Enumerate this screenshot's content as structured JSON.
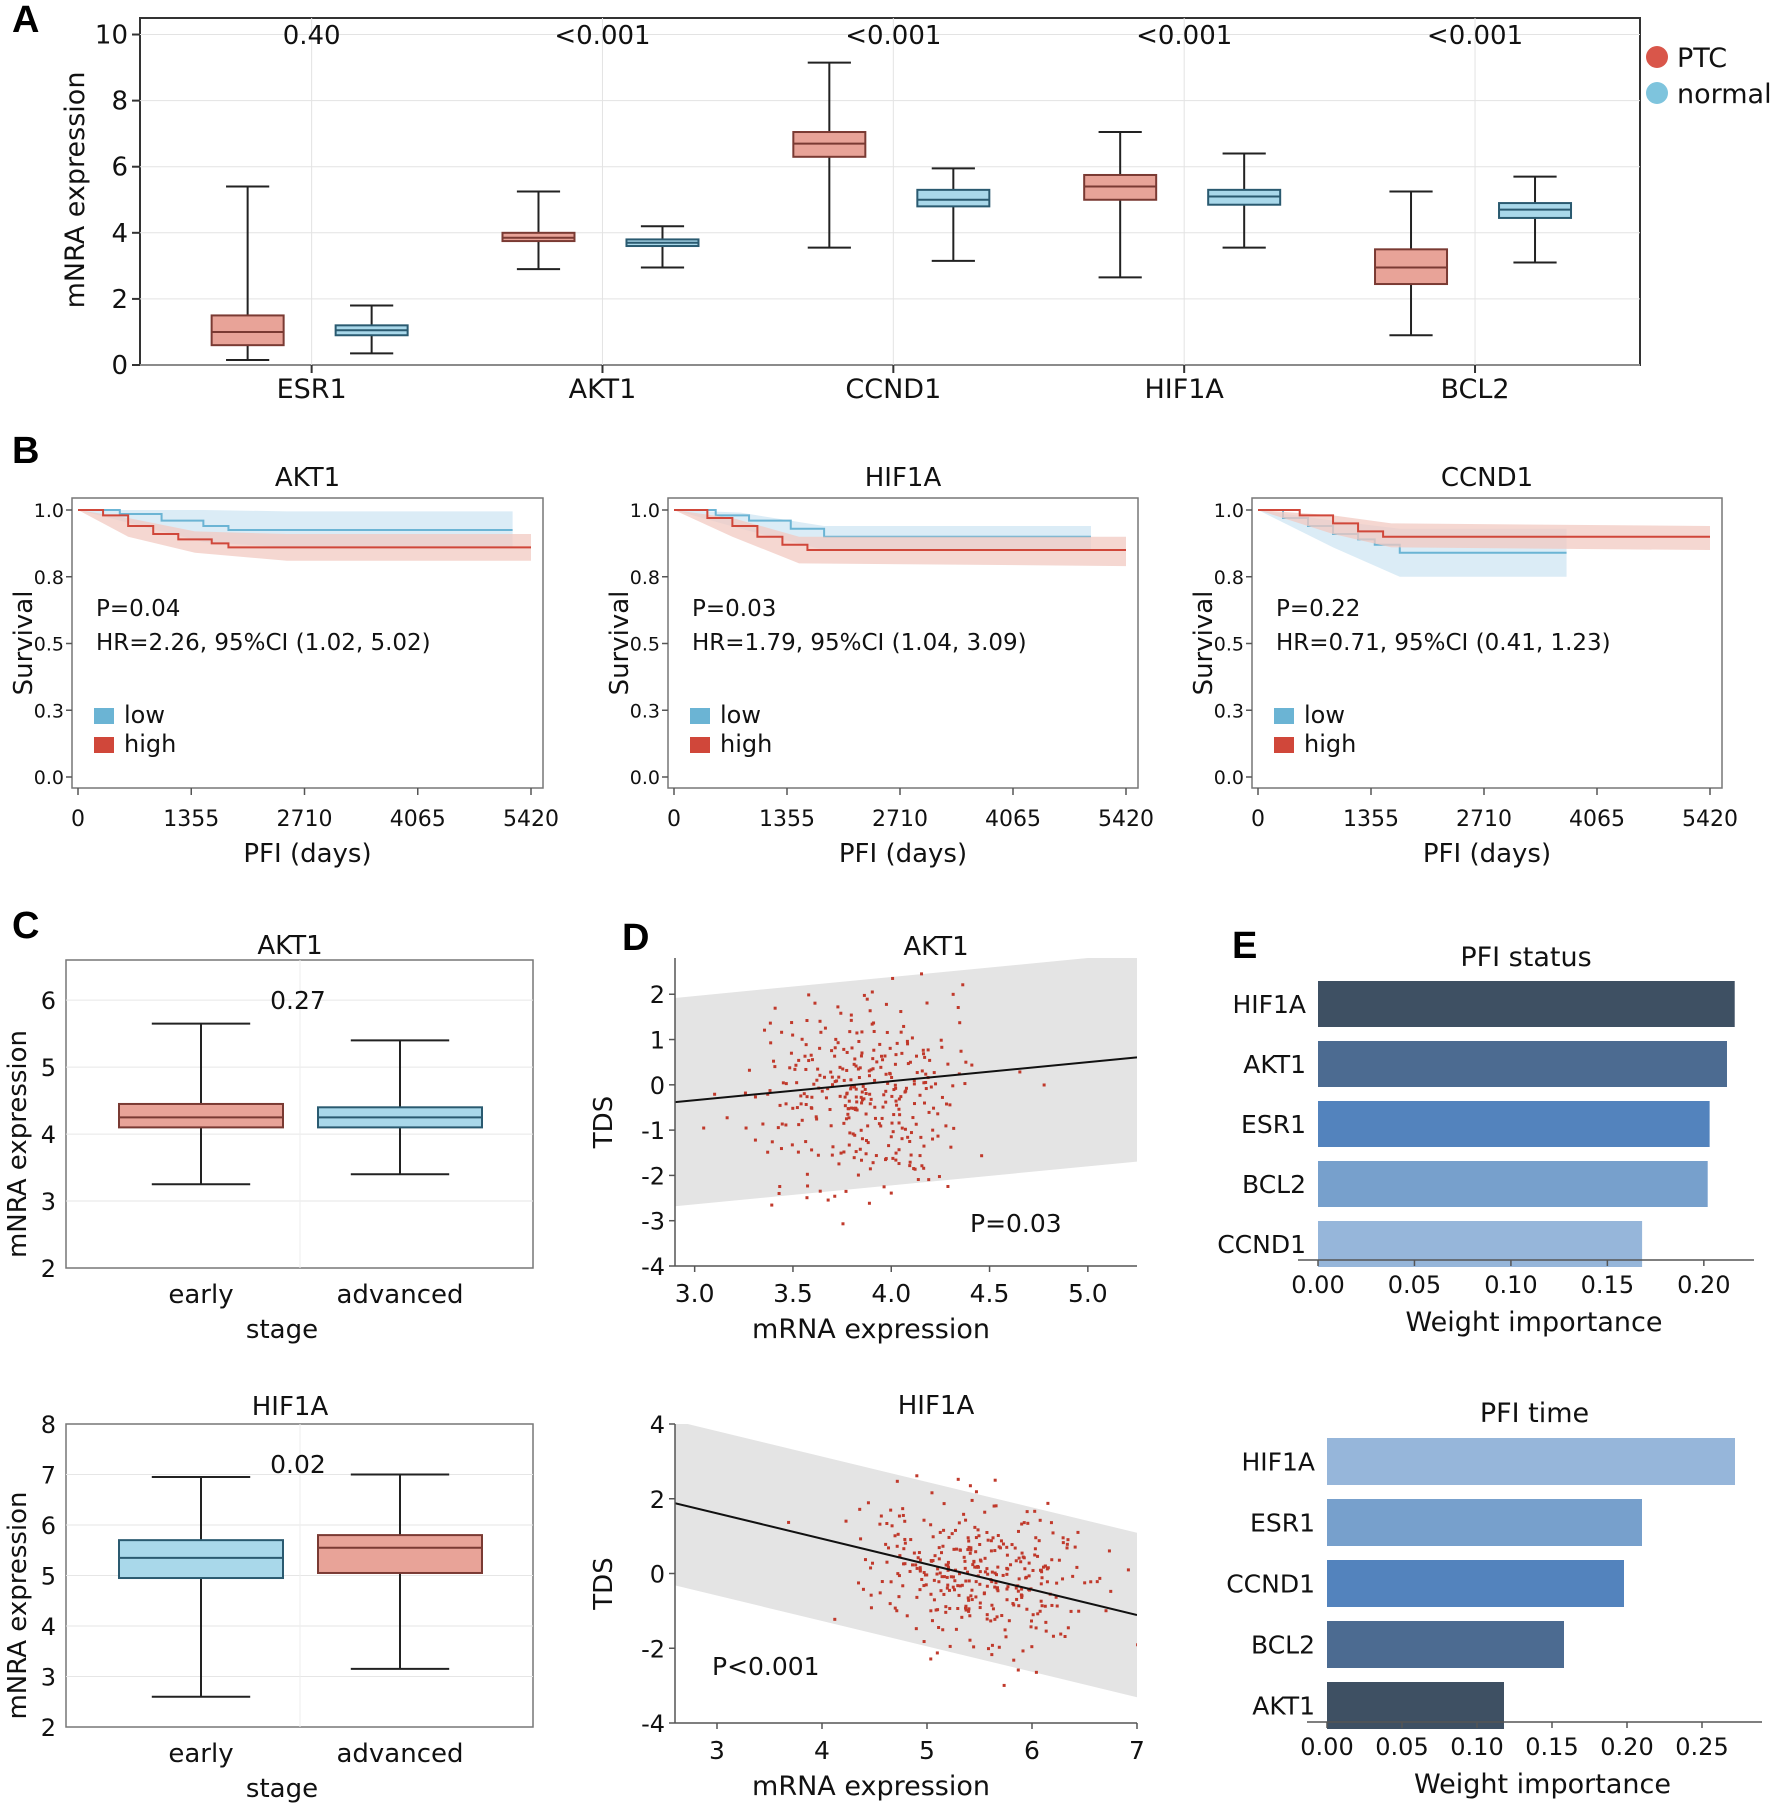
{
  "colors": {
    "ptc": "#e8a398",
    "ptc_edge": "#7a3a33",
    "normal": "#a9d8ea",
    "normal_edge": "#2a5a70",
    "low": "#6bb4d4",
    "high": "#d0473a",
    "band_low": "#cfe6f3",
    "band_high": "#f1c9c2",
    "scatter": "#c0392b",
    "bar_dark": "#3e5063",
    "bar_mid": "#4c6b91",
    "bar_blue": "#5383bd",
    "bar_light": "#77a0cc",
    "bar_pale": "#96b6da"
  },
  "panels": {
    "a": "A",
    "b": "B",
    "c": "C",
    "d": "D",
    "e": "E"
  },
  "chart_data": [
    {
      "id": "A",
      "type": "boxplot",
      "title": "",
      "ylabel": "mNRA expression",
      "xlabel": "",
      "ylim": [
        0,
        10.5
      ],
      "yticks": [
        0,
        2,
        4,
        6,
        8,
        10
      ],
      "categories": [
        "ESR1",
        "AKT1",
        "CCND1",
        "HIF1A",
        "BCL2"
      ],
      "pvalues": [
        "0.40",
        "<0.001",
        "<0.001",
        "<0.001",
        "<0.001"
      ],
      "legend": [
        "PTC",
        "normal"
      ],
      "series": [
        {
          "name": "PTC",
          "boxes": [
            {
              "min": 0.15,
              "q1": 0.6,
              "median": 1.0,
              "q3": 1.5,
              "max": 5.4
            },
            {
              "min": 2.9,
              "q1": 3.75,
              "median": 3.85,
              "q3": 4.0,
              "max": 5.25
            },
            {
              "min": 3.55,
              "q1": 6.3,
              "median": 6.7,
              "q3": 7.05,
              "max": 9.15
            },
            {
              "min": 2.65,
              "q1": 5.0,
              "median": 5.4,
              "q3": 5.75,
              "max": 7.05
            },
            {
              "min": 0.9,
              "q1": 2.45,
              "median": 2.95,
              "q3": 3.5,
              "max": 5.25
            }
          ]
        },
        {
          "name": "normal",
          "boxes": [
            {
              "min": 0.35,
              "q1": 0.9,
              "median": 1.05,
              "q3": 1.2,
              "max": 1.8
            },
            {
              "min": 2.95,
              "q1": 3.6,
              "median": 3.7,
              "q3": 3.8,
              "max": 4.2
            },
            {
              "min": 3.15,
              "q1": 4.8,
              "median": 5.0,
              "q3": 5.3,
              "max": 5.95
            },
            {
              "min": 3.55,
              "q1": 4.85,
              "median": 5.1,
              "q3": 5.3,
              "max": 6.4
            },
            {
              "min": 3.1,
              "q1": 4.45,
              "median": 4.7,
              "q3": 4.9,
              "max": 5.7
            }
          ]
        }
      ]
    },
    {
      "id": "B1",
      "type": "survival",
      "title": "AKT1",
      "xlabel": "PFI (days)",
      "ylabel": "Survival",
      "xlim": [
        0,
        5420
      ],
      "xticks": [
        0,
        1355,
        2710,
        4065,
        5420
      ],
      "ylim": [
        0,
        1.0
      ],
      "yticks": [
        0.0,
        0.25,
        0.5,
        0.75,
        1.0
      ],
      "ytick_labels": [
        "0.0",
        "0.3",
        "0.5",
        "0.8",
        "1.0"
      ],
      "stats": [
        "P=0.04",
        "HR=2.26, 95%CI (1.02, 5.02)"
      ],
      "legend": [
        "low",
        "high"
      ],
      "series": [
        {
          "name": "low",
          "end": 5200,
          "points": [
            [
              0,
              1.0
            ],
            [
              500,
              0.985
            ],
            [
              1000,
              0.96
            ],
            [
              1500,
              0.94
            ],
            [
              1800,
              0.925
            ],
            [
              5200,
              0.925
            ]
          ],
          "ci": [
            [
              0,
              1.0,
              1.0
            ],
            [
              500,
              1.0,
              0.96
            ],
            [
              1500,
              1.0,
              0.88
            ],
            [
              2500,
              0.995,
              0.86
            ],
            [
              5200,
              0.995,
              0.86
            ]
          ]
        },
        {
          "name": "high",
          "end": 5420,
          "points": [
            [
              0,
              1.0
            ],
            [
              300,
              0.98
            ],
            [
              600,
              0.94
            ],
            [
              900,
              0.91
            ],
            [
              1200,
              0.89
            ],
            [
              1600,
              0.875
            ],
            [
              1800,
              0.86
            ],
            [
              5420,
              0.86
            ]
          ],
          "ci": [
            [
              0,
              1.0,
              1.0
            ],
            [
              600,
              0.97,
              0.9
            ],
            [
              1400,
              0.92,
              0.84
            ],
            [
              2500,
              0.91,
              0.81
            ],
            [
              5420,
              0.91,
              0.81
            ]
          ]
        }
      ]
    },
    {
      "id": "B2",
      "type": "survival",
      "title": "HIF1A",
      "xlabel": "PFI (days)",
      "ylabel": "Survival",
      "xlim": [
        0,
        5420
      ],
      "xticks": [
        0,
        1355,
        2710,
        4065,
        5420
      ],
      "ylim": [
        0,
        1.0
      ],
      "yticks": [
        0.0,
        0.25,
        0.5,
        0.75,
        1.0
      ],
      "ytick_labels": [
        "0.0",
        "0.3",
        "0.5",
        "0.8",
        "1.0"
      ],
      "stats": [
        "P=0.03",
        "HR=1.79, 95%CI (1.04, 3.09)"
      ],
      "legend": [
        "low",
        "high"
      ],
      "series": [
        {
          "name": "low",
          "end": 5000,
          "points": [
            [
              0,
              1.0
            ],
            [
              500,
              0.98
            ],
            [
              900,
              0.96
            ],
            [
              1400,
              0.93
            ],
            [
              1800,
              0.9
            ],
            [
              5000,
              0.9
            ]
          ],
          "ci": [
            [
              0,
              1.0,
              1.0
            ],
            [
              800,
              0.99,
              0.93
            ],
            [
              1800,
              0.94,
              0.85
            ],
            [
              5000,
              0.94,
              0.85
            ]
          ]
        },
        {
          "name": "high",
          "end": 5420,
          "points": [
            [
              0,
              1.0
            ],
            [
              400,
              0.97
            ],
            [
              700,
              0.94
            ],
            [
              1000,
              0.9
            ],
            [
              1300,
              0.87
            ],
            [
              1600,
              0.85
            ],
            [
              5420,
              0.85
            ]
          ],
          "ci": [
            [
              0,
              1.0,
              1.0
            ],
            [
              700,
              0.97,
              0.9
            ],
            [
              1500,
              0.9,
              0.8
            ],
            [
              5420,
              0.9,
              0.79
            ]
          ]
        }
      ]
    },
    {
      "id": "B3",
      "type": "survival",
      "title": "CCND1",
      "xlabel": "PFI (days)",
      "ylabel": "Survival",
      "xlim": [
        0,
        5420
      ],
      "xticks": [
        0,
        1355,
        2710,
        4065,
        5420
      ],
      "ylim": [
        0,
        1.0
      ],
      "yticks": [
        0.0,
        0.25,
        0.5,
        0.75,
        1.0
      ],
      "ytick_labels": [
        "0.0",
        "0.3",
        "0.5",
        "0.8",
        "1.0"
      ],
      "stats": [
        "P=0.22",
        "HR=0.71, 95%CI (0.41, 1.23)"
      ],
      "legend": [
        "low",
        "high"
      ],
      "series": [
        {
          "name": "low",
          "end": 3700,
          "points": [
            [
              0,
              1.0
            ],
            [
              300,
              0.97
            ],
            [
              600,
              0.94
            ],
            [
              900,
              0.91
            ],
            [
              1200,
              0.89
            ],
            [
              1400,
              0.87
            ],
            [
              1700,
              0.84
            ],
            [
              3700,
              0.84
            ]
          ],
          "ci": [
            [
              0,
              1.0,
              1.0
            ],
            [
              900,
              0.96,
              0.86
            ],
            [
              1700,
              0.93,
              0.75
            ],
            [
              3700,
              0.93,
              0.75
            ]
          ]
        },
        {
          "name": "high",
          "end": 5420,
          "points": [
            [
              0,
              1.0
            ],
            [
              500,
              0.98
            ],
            [
              900,
              0.95
            ],
            [
              1200,
              0.92
            ],
            [
              1500,
              0.9
            ],
            [
              5420,
              0.9
            ]
          ],
          "ci": [
            [
              0,
              1.0,
              1.0
            ],
            [
              900,
              0.98,
              0.91
            ],
            [
              1600,
              0.95,
              0.86
            ],
            [
              5420,
              0.94,
              0.85
            ]
          ]
        }
      ]
    },
    {
      "id": "C1",
      "type": "boxplot",
      "title": "AKT1",
      "xlabel": "stage",
      "ylabel": "mNRA expression",
      "ylim": [
        2,
        6.6
      ],
      "yticks": [
        2,
        3,
        4,
        5,
        6
      ],
      "categories": [
        "early",
        "advanced"
      ],
      "pvalue": "0.27",
      "boxes": [
        {
          "name": "early",
          "color": "ptc",
          "min": 3.25,
          "q1": 4.1,
          "median": 4.25,
          "q3": 4.45,
          "max": 5.65
        },
        {
          "name": "advanced",
          "color": "normal",
          "min": 3.4,
          "q1": 4.1,
          "median": 4.25,
          "q3": 4.4,
          "max": 5.4
        }
      ]
    },
    {
      "id": "C2",
      "type": "boxplot",
      "title": "HIF1A",
      "xlabel": "stage",
      "ylabel": "mNRA expression",
      "ylim": [
        2,
        8.0
      ],
      "yticks": [
        2,
        3,
        4,
        5,
        6,
        7,
        8
      ],
      "categories": [
        "early",
        "advanced"
      ],
      "pvalue": "0.02",
      "boxes": [
        {
          "name": "early",
          "color": "normal",
          "min": 2.6,
          "q1": 4.95,
          "median": 5.35,
          "q3": 5.7,
          "max": 6.95
        },
        {
          "name": "advanced",
          "color": "ptc",
          "min": 3.15,
          "q1": 5.05,
          "median": 5.55,
          "q3": 5.8,
          "max": 7.0
        }
      ]
    },
    {
      "id": "D1",
      "type": "scatter",
      "title": "AKT1",
      "xlabel": "mRNA expression",
      "ylabel": "TDS",
      "xlim": [
        2.9,
        5.25
      ],
      "ylim": [
        -4,
        2.8
      ],
      "xticks": [
        3.0,
        3.5,
        4.0,
        4.5,
        5.0
      ],
      "xtick_labels": [
        "3.0",
        "3.5",
        "4.0",
        "4.5",
        "5.0"
      ],
      "yticks": [
        -4,
        -3,
        -2,
        -1,
        0,
        1,
        2
      ],
      "annotation": "P=0.03",
      "fit": {
        "slope": 0.42,
        "intercept": -1.6,
        "band": 2.3
      },
      "cloud": {
        "n": 340,
        "x_mean": 3.85,
        "x_sd": 0.28,
        "y_mean": -0.25,
        "y_sd": 1.05,
        "seed": 7
      }
    },
    {
      "id": "D2",
      "type": "scatter",
      "title": "HIF1A",
      "xlabel": "mRNA expression",
      "ylabel": "TDS",
      "xlim": [
        2.6,
        7.0
      ],
      "ylim": [
        -4,
        4
      ],
      "xticks": [
        3,
        4,
        5,
        6,
        7
      ],
      "xtick_labels": [
        "3",
        "4",
        "5",
        "6",
        "7"
      ],
      "yticks": [
        -4,
        -2,
        0,
        2,
        4
      ],
      "annotation": "P<0.001",
      "fit": {
        "slope": -0.68,
        "intercept": 3.65,
        "band": 2.2
      },
      "cloud": {
        "n": 360,
        "x_mean": 5.45,
        "x_sd": 0.55,
        "y_mean": 0.0,
        "y_sd": 1.05,
        "seed": 11
      }
    },
    {
      "id": "E1",
      "type": "bar",
      "orientation": "horizontal",
      "title": "PFI status",
      "xlabel": "Weight importance",
      "xlim": [
        0,
        0.226
      ],
      "xticks": [
        0.0,
        0.05,
        0.1,
        0.15,
        0.2
      ],
      "xtick_labels": [
        "0.00",
        "0.05",
        "0.10",
        "0.15",
        "0.20"
      ],
      "categories": [
        "HIF1A",
        "AKT1",
        "ESR1",
        "BCL2",
        "CCND1"
      ],
      "values": [
        0.216,
        0.212,
        0.203,
        0.202,
        0.168
      ],
      "bar_colors": [
        "bar_dark",
        "bar_mid",
        "bar_blue",
        "bar_light",
        "bar_pale"
      ]
    },
    {
      "id": "E2",
      "type": "bar",
      "orientation": "horizontal",
      "title": "PFI time",
      "xlabel": "Weight importance",
      "xlim": [
        0,
        0.29
      ],
      "xticks": [
        0.0,
        0.05,
        0.1,
        0.15,
        0.2,
        0.25
      ],
      "xtick_labels": [
        "0.00",
        "0.05",
        "0.10",
        "0.15",
        "0.20",
        "0.25"
      ],
      "categories": [
        "HIF1A",
        "ESR1",
        "CCND1",
        "BCL2",
        "AKT1"
      ],
      "values": [
        0.272,
        0.21,
        0.198,
        0.158,
        0.118
      ],
      "bar_colors": [
        "bar_pale",
        "bar_light",
        "bar_blue",
        "bar_mid",
        "bar_dark"
      ]
    }
  ]
}
